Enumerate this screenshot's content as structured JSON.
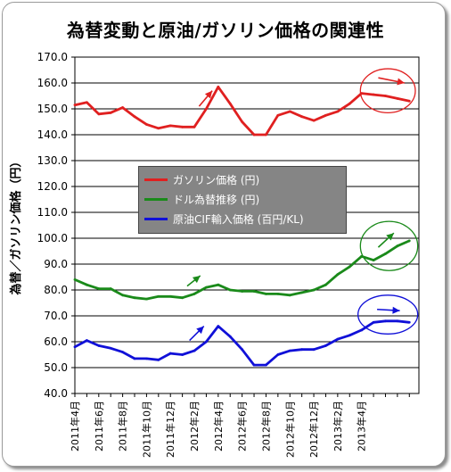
{
  "chart_data": {
    "type": "line",
    "title": "為替変動と原油/ガソリン価格の関連性",
    "ylabel": "為替／ガソリン価格（円）",
    "xlabel": "",
    "ylim": [
      40,
      170
    ],
    "yticks": [
      "40.0",
      "50.0",
      "60.0",
      "70.0",
      "80.0",
      "90.0",
      "100.0",
      "110.0",
      "120.0",
      "130.0",
      "140.0",
      "150.0",
      "160.0",
      "170.0"
    ],
    "x_tick_labels": [
      "2011年4月",
      "2011年6月",
      "2011年8月",
      "2011年10月",
      "2011年12月",
      "2012年2月",
      "2012年4月",
      "2012年6月",
      "2012年8月",
      "2012年10月",
      "2012年12月",
      "2013年2月",
      "2013年4月"
    ],
    "x_start": "2011年4月",
    "x_end": "2013年5月",
    "grid": true,
    "legend_position": "center-left",
    "series": [
      {
        "name": "ガソリン価格 (円)",
        "color": "#e02020",
        "points": [
          [
            0,
            151.5
          ],
          [
            1,
            152.5
          ],
          [
            2,
            148
          ],
          [
            3,
            148.5
          ],
          [
            4,
            150.5
          ],
          [
            5,
            147
          ],
          [
            6,
            144
          ],
          [
            7,
            142.5
          ],
          [
            8,
            143.5
          ],
          [
            9,
            143
          ],
          [
            10,
            143
          ],
          [
            11,
            150
          ],
          [
            12,
            158.5
          ],
          [
            13,
            152
          ],
          [
            14,
            145
          ],
          [
            15,
            140
          ],
          [
            16,
            140
          ],
          [
            17,
            147.5
          ],
          [
            18,
            149
          ],
          [
            19,
            147
          ],
          [
            20,
            145.5
          ],
          [
            21,
            147.5
          ],
          [
            22,
            149
          ],
          [
            23,
            152
          ],
          [
            24,
            156
          ],
          [
            25,
            155.5
          ],
          [
            26,
            155
          ],
          [
            27,
            154
          ],
          [
            28,
            153
          ]
        ]
      },
      {
        "name": "ドル為替推移 (円)",
        "color": "#1a8a1a",
        "points": [
          [
            0,
            84
          ],
          [
            1,
            82
          ],
          [
            2,
            80.5
          ],
          [
            3,
            80.5
          ],
          [
            4,
            78
          ],
          [
            5,
            77
          ],
          [
            6,
            76.5
          ],
          [
            7,
            77.5
          ],
          [
            8,
            77.5
          ],
          [
            9,
            77
          ],
          [
            10,
            78.5
          ],
          [
            11,
            81
          ],
          [
            12,
            82
          ],
          [
            13,
            80
          ],
          [
            14,
            79.5
          ],
          [
            15,
            79.5
          ],
          [
            16,
            78.5
          ],
          [
            17,
            78.5
          ],
          [
            18,
            78
          ],
          [
            19,
            79
          ],
          [
            20,
            80
          ],
          [
            21,
            82
          ],
          [
            22,
            86
          ],
          [
            23,
            89
          ],
          [
            24,
            93
          ],
          [
            25,
            91.5
          ],
          [
            26,
            94
          ],
          [
            27,
            97
          ],
          [
            28,
            99
          ]
        ]
      },
      {
        "name": "原油CIF輸入価格 (百円/KL)",
        "color": "#1010d8",
        "points": [
          [
            0,
            58
          ],
          [
            1,
            60.5
          ],
          [
            2,
            58.5
          ],
          [
            3,
            57.5
          ],
          [
            4,
            56
          ],
          [
            5,
            53.5
          ],
          [
            6,
            53.5
          ],
          [
            7,
            53
          ],
          [
            8,
            55.5
          ],
          [
            9,
            55
          ],
          [
            10,
            56.5
          ],
          [
            11,
            60
          ],
          [
            12,
            66
          ],
          [
            13,
            62
          ],
          [
            14,
            57
          ],
          [
            15,
            51
          ],
          [
            16,
            51
          ],
          [
            17,
            55
          ],
          [
            18,
            56.5
          ],
          [
            19,
            57
          ],
          [
            20,
            57
          ],
          [
            21,
            58.5
          ],
          [
            22,
            61
          ],
          [
            23,
            62.5
          ],
          [
            24,
            64.5
          ],
          [
            25,
            67.5
          ],
          [
            26,
            68
          ],
          [
            27,
            68
          ],
          [
            28,
            67.5
          ]
        ]
      }
    ],
    "annotations": [
      {
        "type": "arrow",
        "color": "#e02020",
        "from": [
          10.4,
          151
        ],
        "to": [
          11.5,
          157
        ]
      },
      {
        "type": "arrow",
        "color": "#e02020",
        "from": [
          25.4,
          162
        ],
        "to": [
          27.6,
          160
        ]
      },
      {
        "type": "ellipse",
        "color": "#e02020",
        "cx": 26.2,
        "cy": 157,
        "rx": 2.3,
        "ry": 8.5
      },
      {
        "type": "arrow",
        "color": "#1a8a1a",
        "from": [
          9.4,
          81.5
        ],
        "to": [
          10.5,
          85.5
        ]
      },
      {
        "type": "arrow",
        "color": "#1a8a1a",
        "from": [
          25.4,
          96.5
        ],
        "to": [
          26.7,
          102
        ]
      },
      {
        "type": "ellipse",
        "color": "#1a8a1a",
        "cx": 26.3,
        "cy": 97,
        "rx": 2.4,
        "ry": 9.5
      },
      {
        "type": "arrow",
        "color": "#1010d8",
        "from": [
          9.6,
          60.5
        ],
        "to": [
          10.8,
          66
        ]
      },
      {
        "type": "arrow",
        "color": "#1010d8",
        "from": [
          25.3,
          72.5
        ],
        "to": [
          27.2,
          72
        ]
      },
      {
        "type": "ellipse",
        "color": "#1010d8",
        "cx": 26.2,
        "cy": 70.5,
        "rx": 2.5,
        "ry": 7.5
      }
    ]
  }
}
